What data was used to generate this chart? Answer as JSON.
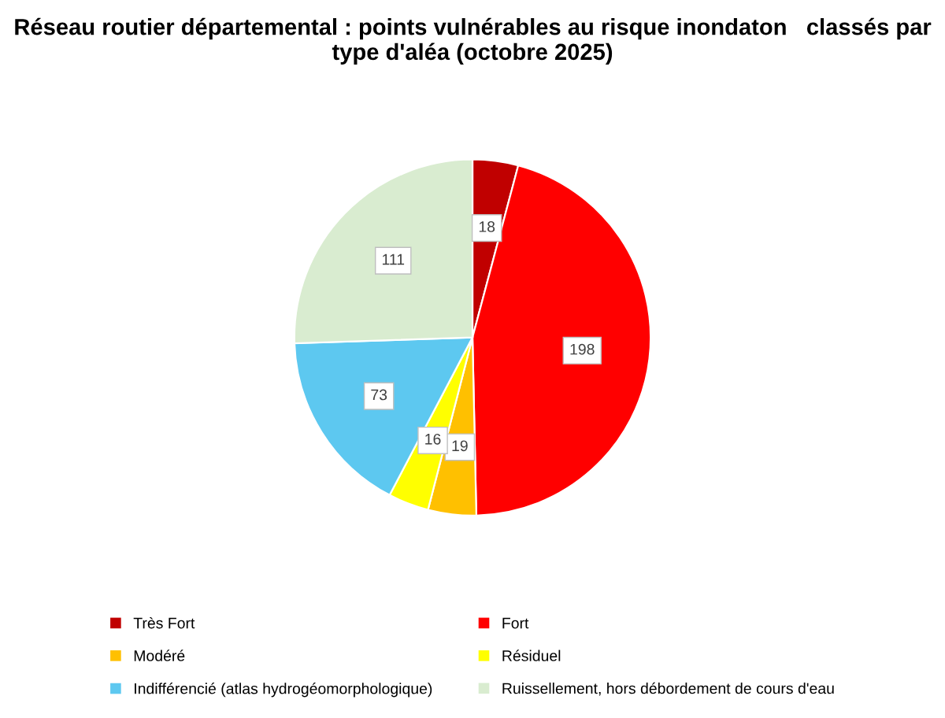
{
  "chart_data": {
    "type": "pie",
    "title": "Réseau routier départemental : points vulnérables au risque inondaton   classés par type d'aléa (octobre 2025)",
    "categories": [
      "Très Fort",
      "Fort",
      "Modéré",
      "Résiduel",
      "Indifférencié (atlas hydrogéomorphologique)",
      "Ruissellement, hors débordement de cours d'eau"
    ],
    "values": [
      18,
      198,
      19,
      16,
      73,
      111
    ],
    "colors": [
      "#c00000",
      "#ff0000",
      "#ffc000",
      "#ffff00",
      "#5dc8f0",
      "#d9ecd0"
    ],
    "data_labels": true,
    "legend": "bottom"
  }
}
